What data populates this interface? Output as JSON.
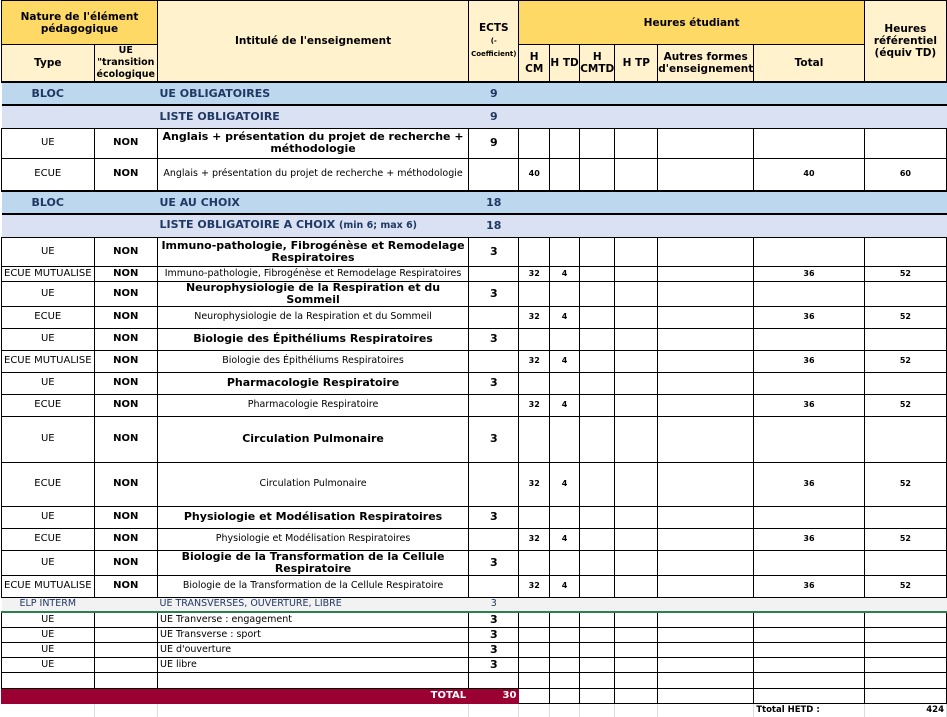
{
  "header": {
    "nature": "Nature de l'élément pédagogique",
    "type": "Type",
    "ue_transition": "UE \"transition écologique",
    "intitule": "Intitulé de l'enseignement",
    "ects": "ECTS",
    "ects_sub": "(-Coefficient)",
    "heures_etudiant": "Heures étudiant",
    "hcm": "H CM",
    "htd": "H TD",
    "hcmtd": "H CMTD",
    "htp": "H TP",
    "autres": "Autres formes d'enseignement",
    "total": "Total",
    "heures_ref": "Heures référentiel (équiv TD)"
  },
  "rows": [
    {
      "kind": "bloc",
      "type": "BLOC",
      "title": "UE OBLIGATOIRES",
      "ects": "9"
    },
    {
      "kind": "liste",
      "title": "LISTE OBLIGATOIRE",
      "ects": "9"
    },
    {
      "kind": "ue",
      "type": "UE",
      "non": "NON",
      "title": "Anglais + présentation du projet de recherche + méthodologie",
      "ects": "9"
    },
    {
      "kind": "ecue",
      "type": "ECUE",
      "non": "NON",
      "title": "Anglais + présentation du projet de recherche + méthodologie",
      "hcm": "40",
      "htd": "",
      "total": "40",
      "ref": "60"
    },
    {
      "kind": "bloc",
      "type": "BLOC",
      "title": "UE AU CHOIX",
      "ects": "18"
    },
    {
      "kind": "liste",
      "title": "LISTE OBLIGATOIRE A CHOIX",
      "title_small": "(min 6; max 6)",
      "ects": "18"
    },
    {
      "kind": "ue",
      "type": "UE",
      "non": "NON",
      "title": "Immuno-pathologie, Fibrogénèse et Remodelage Respiratoires",
      "ects": "3"
    },
    {
      "kind": "ecue",
      "type": "ECUE MUTUALISE",
      "non": "NON",
      "title": "Immuno-pathologie, Fibrogénèse et Remodelage Respiratoires",
      "hcm": "32",
      "htd": "4",
      "total": "36",
      "ref": "52"
    },
    {
      "kind": "ue",
      "type": "UE",
      "non": "NON",
      "title": "Neurophysiologie de la Respiration et du Sommeil",
      "ects": "3"
    },
    {
      "kind": "ecue",
      "type": "ECUE",
      "non": "NON",
      "title": "Neurophysiologie de la Respiration et du Sommeil",
      "hcm": "32",
      "htd": "4",
      "total": "36",
      "ref": "52"
    },
    {
      "kind": "ue",
      "type": "UE",
      "non": "NON",
      "title": "Biologie des Épithéliums Respiratoires",
      "ects": "3"
    },
    {
      "kind": "ecue",
      "type": "ECUE MUTUALISE",
      "non": "NON",
      "title": "Biologie des Épithéliums Respiratoires",
      "hcm": "32",
      "htd": "4",
      "total": "36",
      "ref": "52"
    },
    {
      "kind": "ue",
      "type": "UE",
      "non": "NON",
      "title": "Pharmacologie Respiratoire",
      "ects": "3"
    },
    {
      "kind": "ecue",
      "type": "ECUE",
      "non": "NON",
      "title": "Pharmacologie Respiratoire",
      "hcm": "32",
      "htd": "4",
      "total": "36",
      "ref": "52"
    },
    {
      "kind": "ue",
      "type": "UE",
      "non": "NON",
      "title": "Circulation Pulmonaire",
      "ects": "3"
    },
    {
      "kind": "ecue",
      "type": "ECUE",
      "non": "NON",
      "title": "Circulation Pulmonaire",
      "hcm": "32",
      "htd": "4",
      "total": "36",
      "ref": "52"
    },
    {
      "kind": "ue",
      "type": "UE",
      "non": "NON",
      "title": "Physiologie et Modélisation Respiratoires",
      "ects": "3"
    },
    {
      "kind": "ecue",
      "type": "ECUE",
      "non": "NON",
      "title": "Physiologie et Modélisation Respiratoires",
      "hcm": "32",
      "htd": "4",
      "total": "36",
      "ref": "52"
    },
    {
      "kind": "ue",
      "type": "UE",
      "non": "NON",
      "title": "Biologie de la Transformation de la Cellule Respiratoire",
      "ects": "3"
    },
    {
      "kind": "ecue",
      "type": "ECUE MUTUALISE",
      "non": "NON",
      "title": "Biologie de la Transformation de la Cellule Respiratoire",
      "hcm": "32",
      "htd": "4",
      "total": "36",
      "ref": "52"
    },
    {
      "kind": "elp",
      "type": "ELP INTERM",
      "title": "UE TRANSVERSES, OUVERTURE, LIBRE",
      "ects": "3"
    },
    {
      "kind": "tr",
      "type": "UE",
      "title": "UE Tranverse : engagement",
      "ects": "3"
    },
    {
      "kind": "tr",
      "type": "UE",
      "title": "UE Transverse : sport",
      "ects": "3"
    },
    {
      "kind": "tr",
      "type": "UE",
      "title": "UE d'ouverture",
      "ects": "3"
    },
    {
      "kind": "tr",
      "type": "UE",
      "title": "UE libre",
      "ects": "3"
    },
    {
      "kind": "empty"
    }
  ],
  "footer": {
    "total_label": "TOTAL",
    "total_ects": "30",
    "total_hetd_label": "Ttotal HETD :",
    "total_hetd": "424"
  },
  "colors": {
    "header_dark": "#ffd966",
    "header_light": "#fff2cc",
    "bloc": "#bdd7ee",
    "liste": "#d9e1f2",
    "total": "#9b0033"
  }
}
